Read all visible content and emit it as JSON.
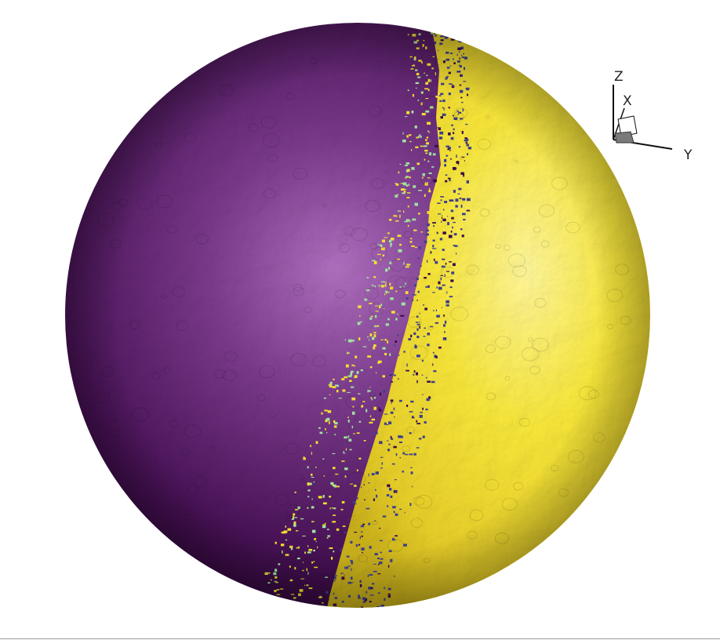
{
  "scene": {
    "colors": {
      "background": "#ffffff",
      "night_side": "#3a0a4a",
      "night_highlight": "#b070c0",
      "day_side": "#f4e02e",
      "day_highlight": "#fff79a",
      "terminator_speckle_dark": "#3b3f8f",
      "terminator_speckle_light": "#9fe3a0"
    }
  },
  "axis_triad": {
    "z_label": "Z",
    "x_label": "X",
    "y_label": "Y"
  }
}
